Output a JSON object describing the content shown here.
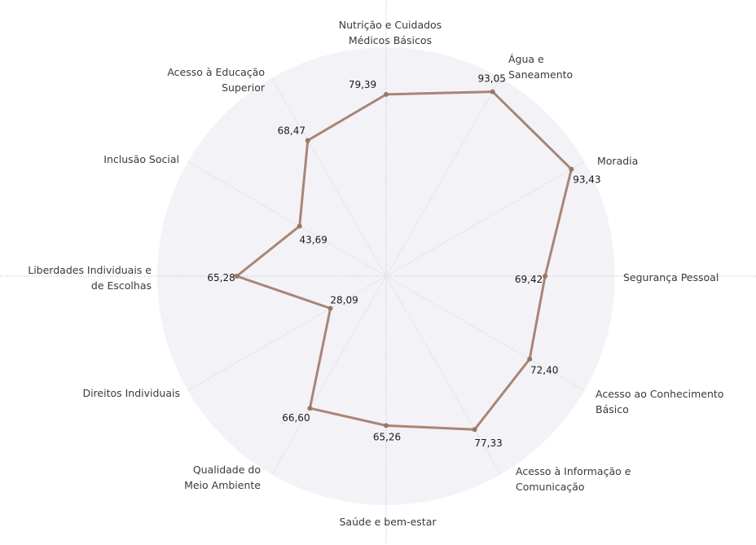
{
  "chart_data": {
    "type": "radar",
    "title": "",
    "axis_max": 100,
    "grid": "spokes",
    "colors": {
      "background_disc": "#f3f3f7",
      "spoke": "#e4e4ea",
      "axis_line": "#b8b8b8",
      "series_line": "#a98577",
      "series_point": "#9a7666"
    },
    "categories": [
      {
        "label": [
          "Nutrição e Cuidados",
          "Médicos Básicos"
        ],
        "value": 79.39,
        "value_text": "79,39"
      },
      {
        "label": [
          "Água e",
          "Saneamento"
        ],
        "value": 93.05,
        "value_text": "93,05"
      },
      {
        "label": [
          "Moradia"
        ],
        "value": 93.43,
        "value_text": "93,43"
      },
      {
        "label": [
          "Segurança Pessoal"
        ],
        "value": 69.42,
        "value_text": "69,42"
      },
      {
        "label": [
          "Acesso ao Conhecimento",
          "Básico"
        ],
        "value": 72.4,
        "value_text": "72,40"
      },
      {
        "label": [
          "Acesso à Informação e",
          "Comunicação"
        ],
        "value": 77.33,
        "value_text": "77,33"
      },
      {
        "label": [
          "Saúde e bem-estar"
        ],
        "value": 65.26,
        "value_text": "65,26"
      },
      {
        "label": [
          "Qualidade do",
          "Meio Ambiente"
        ],
        "value": 66.6,
        "value_text": "66,60"
      },
      {
        "label": [
          "Direitos Individuais"
        ],
        "value": 28.09,
        "value_text": "28,09"
      },
      {
        "label": [
          "Liberdades Individuais e",
          "de Escolhas"
        ],
        "value": 65.28,
        "value_text": "65,28"
      },
      {
        "label": [
          "Inclusão Social"
        ],
        "value": 43.69,
        "value_text": "43,69"
      },
      {
        "label": [
          "Acesso à Educação",
          "Superior"
        ],
        "value": 68.47,
        "value_text": "68,47"
      }
    ]
  }
}
